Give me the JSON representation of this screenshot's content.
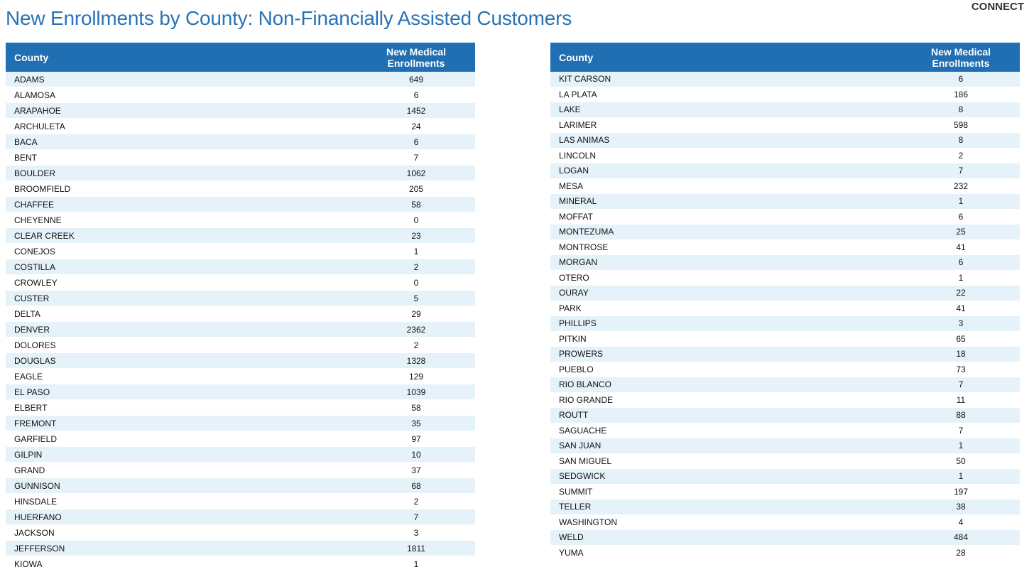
{
  "header": {
    "title": "New Enrollments by County: Non-Financially Assisted Customers",
    "logo": "CONNECT"
  },
  "tables": [
    {
      "columns": [
        "County",
        "New Medical Enrollments"
      ],
      "rows": [
        [
          "ADAMS",
          649
        ],
        [
          "ALAMOSA",
          6
        ],
        [
          "ARAPAHOE",
          1452
        ],
        [
          "ARCHULETA",
          24
        ],
        [
          "BACA",
          6
        ],
        [
          "BENT",
          7
        ],
        [
          "BOULDER",
          1062
        ],
        [
          "BROOMFIELD",
          205
        ],
        [
          "CHAFFEE",
          58
        ],
        [
          "CHEYENNE",
          0
        ],
        [
          "CLEAR CREEK",
          23
        ],
        [
          "CONEJOS",
          1
        ],
        [
          "COSTILLA",
          2
        ],
        [
          "CROWLEY",
          0
        ],
        [
          "CUSTER",
          5
        ],
        [
          "DELTA",
          29
        ],
        [
          "DENVER",
          2362
        ],
        [
          "DOLORES",
          2
        ],
        [
          "DOUGLAS",
          1328
        ],
        [
          "EAGLE",
          129
        ],
        [
          "EL PASO",
          1039
        ],
        [
          "ELBERT",
          58
        ],
        [
          "FREMONT",
          35
        ],
        [
          "GARFIELD",
          97
        ],
        [
          "GILPIN",
          10
        ],
        [
          "GRAND",
          37
        ],
        [
          "GUNNISON",
          68
        ],
        [
          "HINSDALE",
          2
        ],
        [
          "HUERFANO",
          7
        ],
        [
          "JACKSON",
          3
        ],
        [
          "JEFFERSON",
          1811
        ],
        [
          "KIOWA",
          1
        ]
      ]
    },
    {
      "columns": [
        "County",
        "New Medical Enrollments"
      ],
      "rows": [
        [
          "KIT CARSON",
          6
        ],
        [
          "LA PLATA",
          186
        ],
        [
          "LAKE",
          8
        ],
        [
          "LARIMER",
          598
        ],
        [
          "LAS ANIMAS",
          8
        ],
        [
          "LINCOLN",
          2
        ],
        [
          "LOGAN",
          7
        ],
        [
          "MESA",
          232
        ],
        [
          "MINERAL",
          1
        ],
        [
          "MOFFAT",
          6
        ],
        [
          "MONTEZUMA",
          25
        ],
        [
          "MONTROSE",
          41
        ],
        [
          "MORGAN",
          6
        ],
        [
          "OTERO",
          1
        ],
        [
          "OURAY",
          22
        ],
        [
          "PARK",
          41
        ],
        [
          "PHILLIPS",
          3
        ],
        [
          "PITKIN",
          65
        ],
        [
          "PROWERS",
          18
        ],
        [
          "PUEBLO",
          73
        ],
        [
          "RIO BLANCO",
          7
        ],
        [
          "RIO GRANDE",
          11
        ],
        [
          "ROUTT",
          88
        ],
        [
          "SAGUACHE",
          7
        ],
        [
          "SAN JUAN",
          1
        ],
        [
          "SAN MIGUEL",
          50
        ],
        [
          "SEDGWICK",
          1
        ],
        [
          "SUMMIT",
          197
        ],
        [
          "TELLER",
          38
        ],
        [
          "WASHINGTON",
          4
        ],
        [
          "WELD",
          484
        ],
        [
          "YUMA",
          28
        ]
      ]
    }
  ]
}
